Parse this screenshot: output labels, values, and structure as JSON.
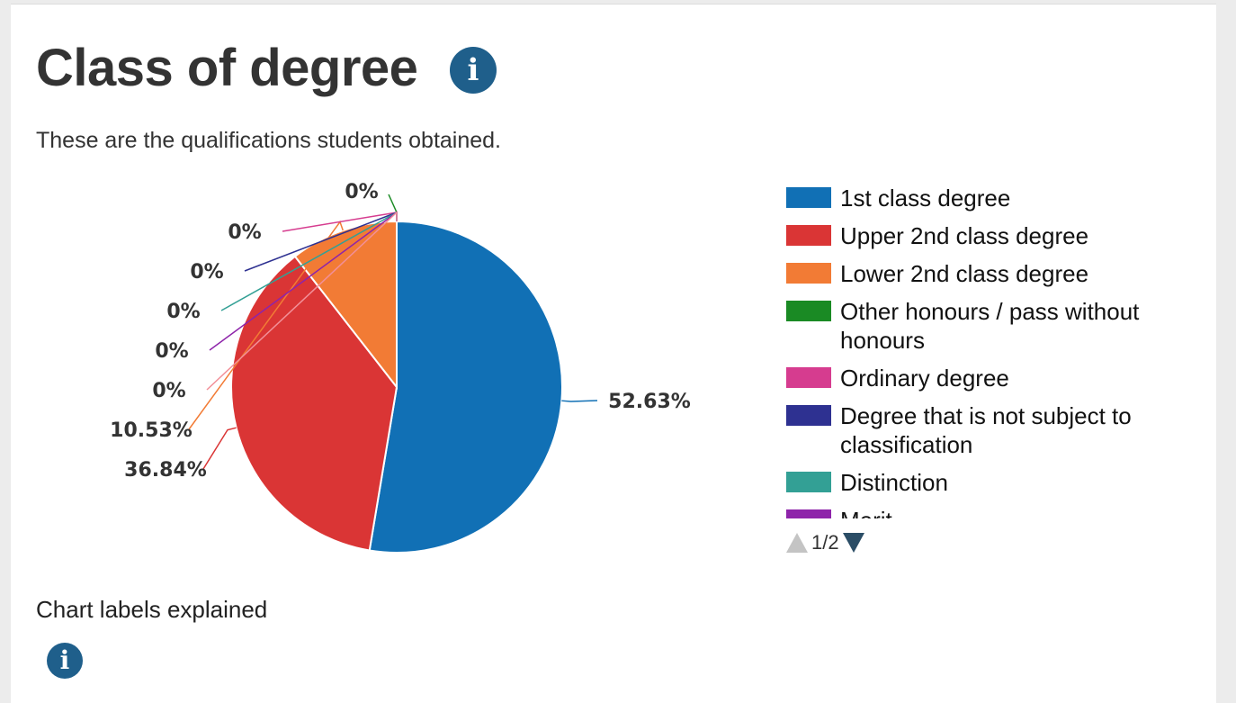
{
  "header": {
    "title": "Class of degree",
    "info_icon": "info-icon",
    "subtitle": "These are the qualifications students obtained."
  },
  "chart_data": {
    "type": "pie",
    "title": "",
    "slices": [
      {
        "label": "1st class degree",
        "value": 52.63,
        "value_label": "52.63%",
        "color": "#1170b5"
      },
      {
        "label": "Upper 2nd class degree",
        "value": 36.84,
        "value_label": "36.84%",
        "color": "#da3535"
      },
      {
        "label": "Lower 2nd class degree",
        "value": 10.53,
        "value_label": "10.53%",
        "color": "#f27b35"
      },
      {
        "label": "Other honours / pass without honours",
        "value": 0,
        "value_label": "0%",
        "color": "#1a8a24"
      },
      {
        "label": "Ordinary degree",
        "value": 0,
        "value_label": "0%",
        "color": "#d63c8f"
      },
      {
        "label": "Degree that is not subject to classification",
        "value": 0,
        "value_label": "0%",
        "color": "#2e3191"
      },
      {
        "label": "Distinction",
        "value": 0,
        "value_label": "0%",
        "color": "#33a095"
      },
      {
        "label": "Merit",
        "value": 0,
        "value_label": "0%",
        "color": "#8e24aa"
      },
      {
        "label": "",
        "value": 0,
        "value_label": "0%",
        "color": "#f28f98"
      }
    ],
    "legend_position": "right",
    "legend_page": "1/2"
  },
  "footer": {
    "labels_explained": "Chart labels explained",
    "info_icon": "info-icon"
  }
}
